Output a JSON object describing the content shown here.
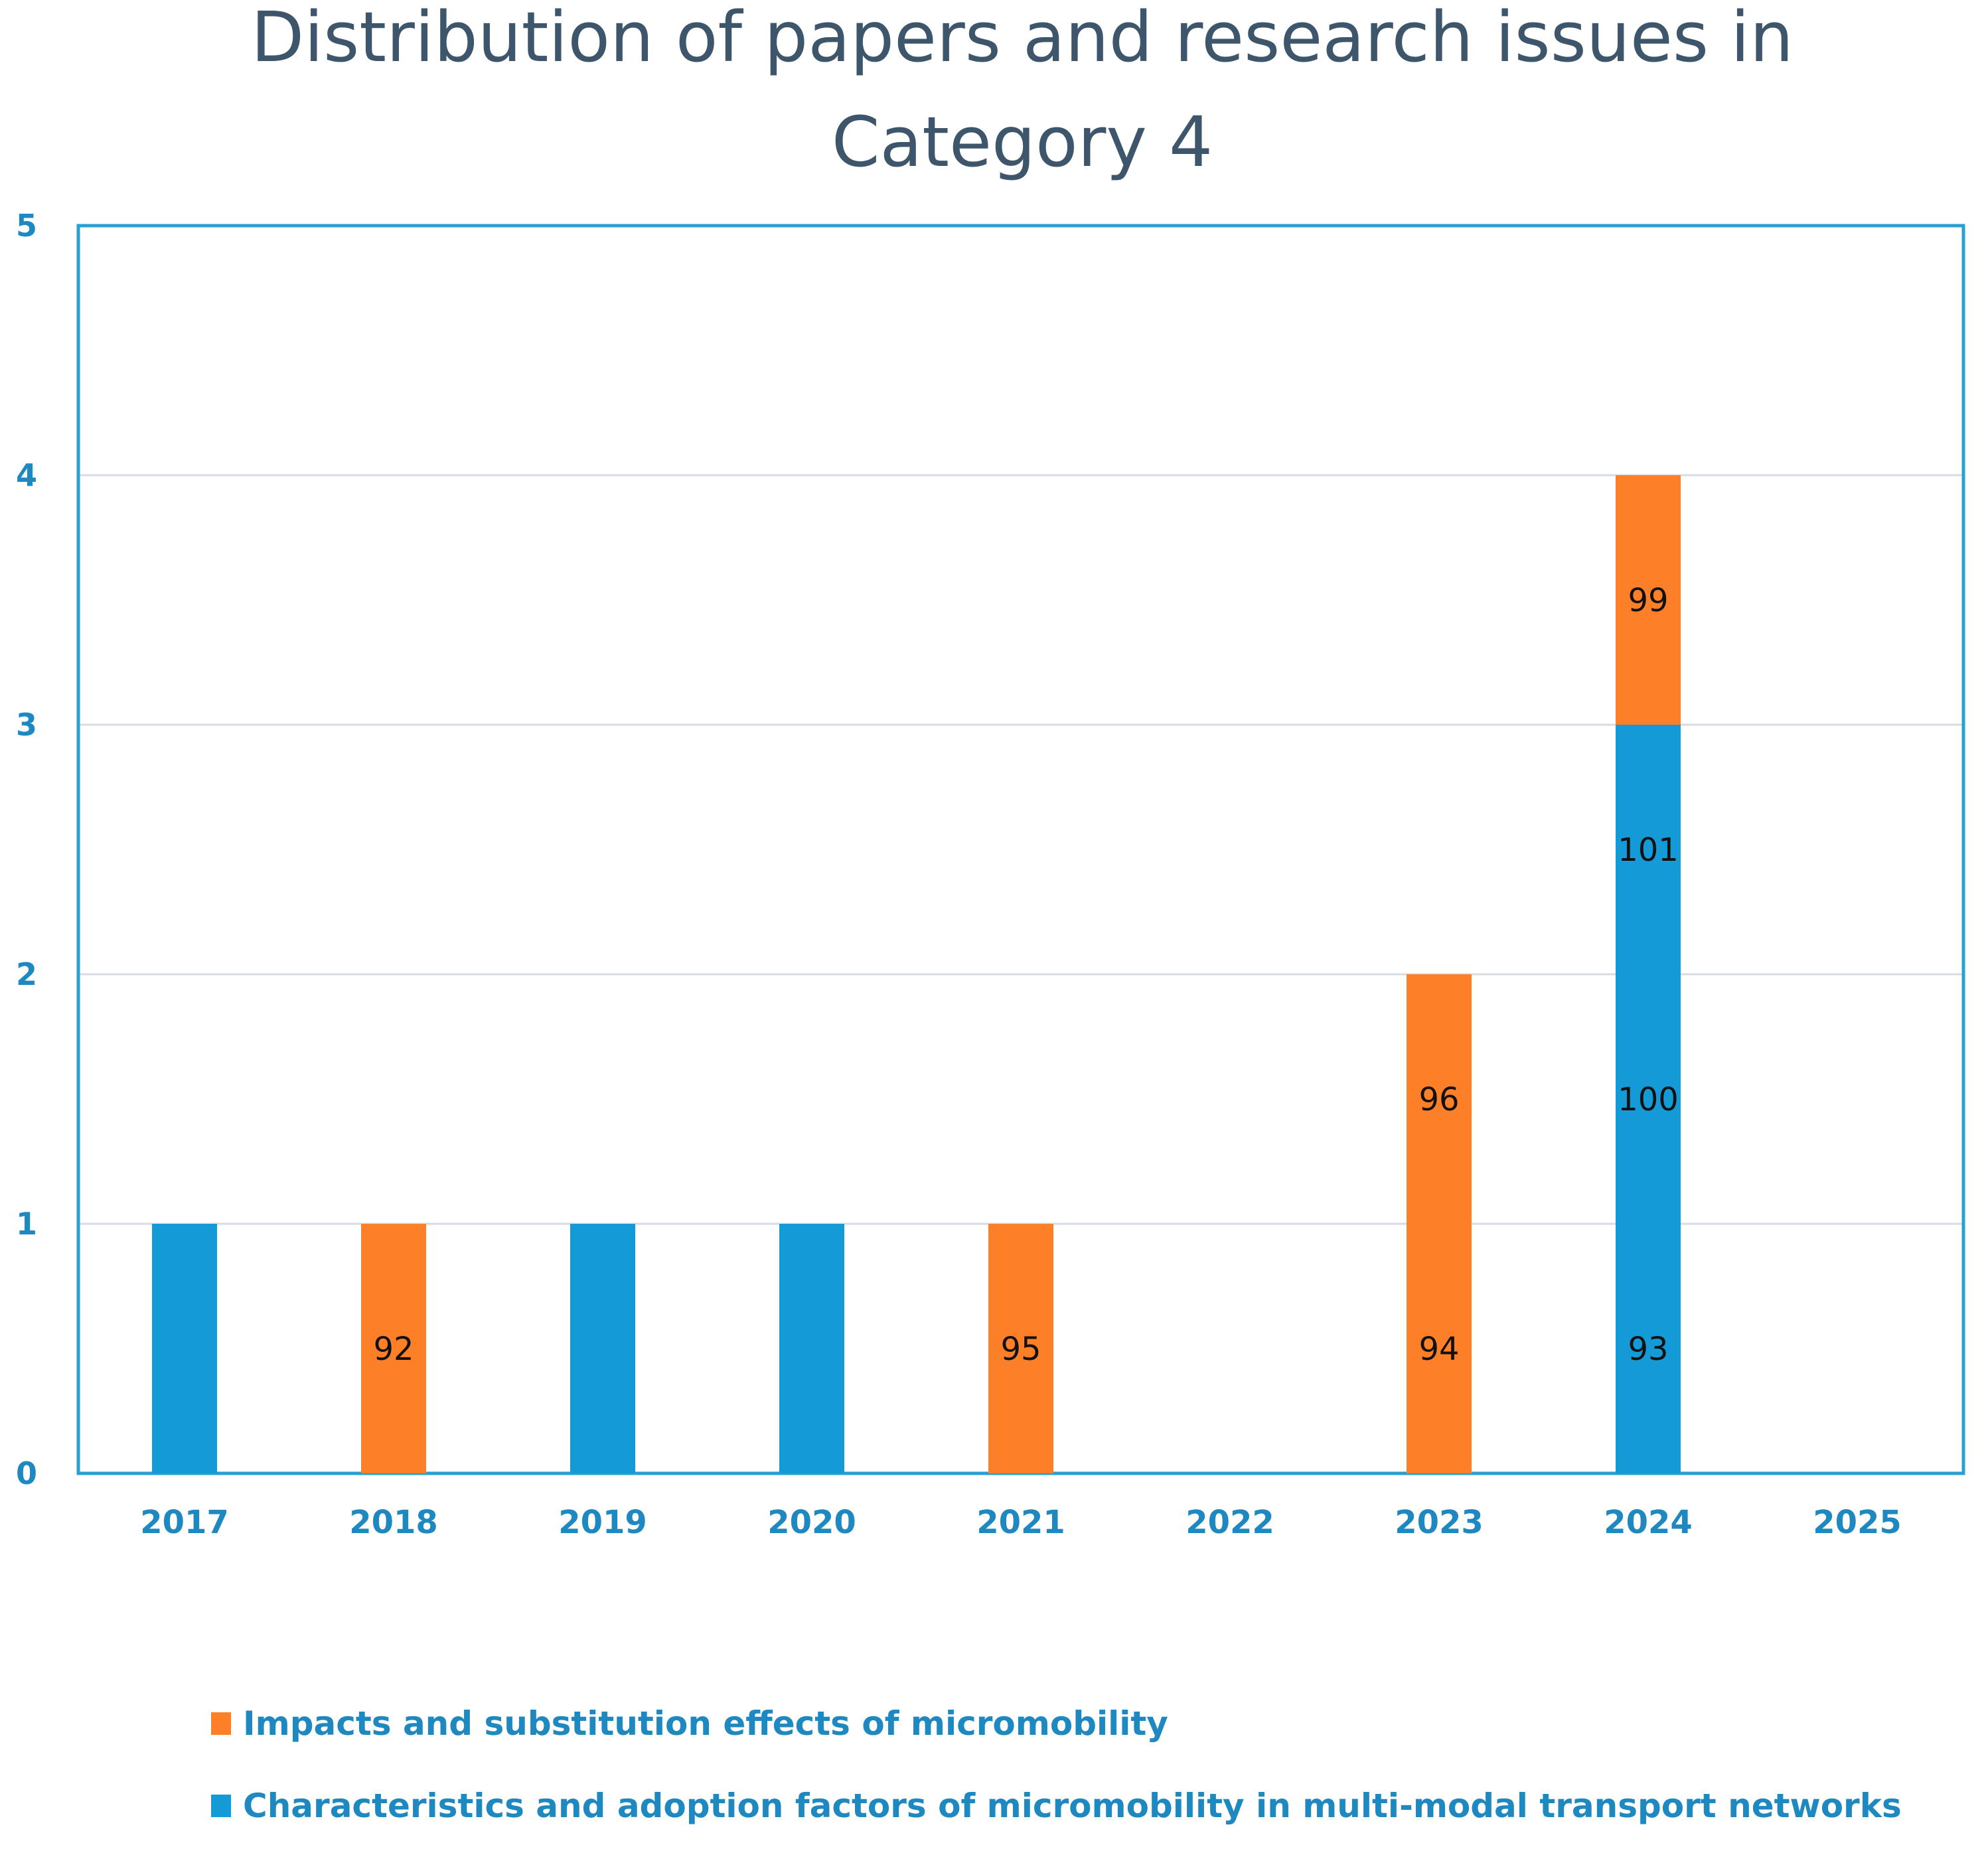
{
  "chart_data": {
    "type": "bar",
    "stacked": true,
    "title_lines": [
      "Distribution of papers and research issues in",
      "Category 4"
    ],
    "categories": [
      "2017",
      "2018",
      "2019",
      "2020",
      "2021",
      "2022",
      "2023",
      "2024",
      "2025"
    ],
    "ylim": [
      0,
      5
    ],
    "yticks": [
      "0",
      "1",
      "2",
      "3",
      "4",
      "5"
    ],
    "grid": true,
    "series": [
      {
        "name": "Characteristics and adoption factors of micromobility in multi-modal transport networks",
        "color": "#149ad6",
        "values": [
          1,
          0,
          1,
          1,
          0,
          0,
          0,
          3,
          0
        ]
      },
      {
        "name": "Impacts and substitution effects of micromobility",
        "color": "#fd7f28",
        "values": [
          0,
          1,
          0,
          0,
          1,
          0,
          2,
          1,
          0
        ]
      }
    ],
    "annotations": [
      {
        "category": "2018",
        "y": 0.5,
        "text": "92"
      },
      {
        "category": "2021",
        "y": 0.5,
        "text": "95"
      },
      {
        "category": "2023",
        "y": 0.5,
        "text": "94"
      },
      {
        "category": "2023",
        "y": 1.5,
        "text": "96"
      },
      {
        "category": "2024",
        "y": 0.5,
        "text": "93"
      },
      {
        "category": "2024",
        "y": 1.5,
        "text": "100"
      },
      {
        "category": "2024",
        "y": 2.5,
        "text": "101"
      },
      {
        "category": "2024",
        "y": 3.5,
        "text": "99"
      }
    ],
    "legend": {
      "position": "bottom",
      "entries": [
        {
          "label": "Impacts and substitution effects of micromobility",
          "color": "#fd7f28"
        },
        {
          "label": "Characteristics and adoption factors of micromobility in multi-modal transport networks",
          "color": "#149ad6"
        }
      ]
    }
  }
}
